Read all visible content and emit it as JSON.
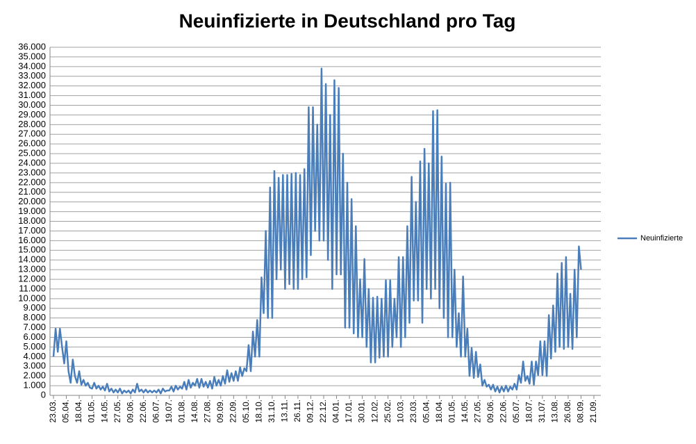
{
  "chart_data": {
    "type": "line",
    "title": "Neuinfizierte in Deutschland pro Tag",
    "categories": [
      "23.03.",
      null,
      null,
      null,
      null,
      null,
      "05.04.",
      null,
      null,
      null,
      null,
      null,
      "18.04.",
      null,
      null,
      null,
      null,
      null,
      "01.05.",
      null,
      null,
      null,
      null,
      null,
      "14.05.",
      null,
      null,
      null,
      null,
      null,
      "27.05.",
      null,
      null,
      null,
      null,
      null,
      "09.06.",
      null,
      null,
      null,
      null,
      null,
      "22.06.",
      null,
      null,
      null,
      null,
      null,
      "06.07.",
      null,
      null,
      null,
      null,
      null,
      "19.07.",
      null,
      null,
      null,
      null,
      null,
      "01.08.",
      null,
      null,
      null,
      null,
      null,
      "14.08.",
      null,
      null,
      null,
      null,
      null,
      "27.08.",
      null,
      null,
      null,
      null,
      null,
      "09.09.",
      null,
      null,
      null,
      null,
      null,
      "22.09.",
      null,
      null,
      null,
      null,
      null,
      "05.10.",
      null,
      null,
      null,
      null,
      null,
      "18.10.",
      null,
      null,
      null,
      null,
      null,
      "31.10.",
      null,
      null,
      null,
      null,
      null,
      "13.11.",
      null,
      null,
      null,
      null,
      null,
      "26.11.",
      null,
      null,
      null,
      null,
      null,
      "09.12.",
      null,
      null,
      null,
      null,
      null,
      "22.12.",
      null,
      null,
      null,
      null,
      null,
      "04.01.",
      null,
      null,
      null,
      null,
      null,
      "17.01.",
      null,
      null,
      null,
      null,
      null,
      "30.01.",
      null,
      null,
      null,
      null,
      null,
      "12.02.",
      null,
      null,
      null,
      null,
      null,
      "25.02.",
      null,
      null,
      null,
      null,
      null,
      "10.03.",
      null,
      null,
      null,
      null,
      null,
      "23.03.",
      null,
      null,
      null,
      null,
      null,
      "05.04.",
      null,
      null,
      null,
      null,
      null,
      "18.04.",
      null,
      null,
      null,
      null,
      null,
      "01.05.",
      null,
      null,
      null,
      null,
      null,
      "14.05.",
      null,
      null,
      null,
      null,
      null,
      "27.05.",
      null,
      null,
      null,
      null,
      null,
      "09.06.",
      null,
      null,
      null,
      null,
      null,
      "22.06.",
      null,
      null,
      null,
      null,
      null,
      "05.07.",
      null,
      null,
      null,
      null,
      null,
      "18.07.",
      null,
      null,
      null,
      null,
      null,
      "31.07.",
      null,
      null,
      null,
      null,
      null,
      "13.08.",
      null,
      null,
      null,
      null,
      null,
      "26.08.",
      null,
      null,
      null,
      null,
      null,
      "08.09.",
      null,
      null,
      null,
      null,
      null,
      "21.09."
    ],
    "series": [
      {
        "name": "Neuinfizierte",
        "color": "#4a7ebb",
        "values": [
          4000,
          6900,
          4500,
          6900,
          5000,
          3300,
          5600,
          2500,
          1300,
          3700,
          2000,
          1300,
          2500,
          1100,
          1600,
          1000,
          1300,
          800,
          700,
          1300,
          700,
          1000,
          600,
          900,
          500,
          1200,
          400,
          700,
          300,
          600,
          300,
          700,
          200,
          500,
          300,
          500,
          200,
          600,
          300,
          1200,
          400,
          600,
          300,
          600,
          300,
          500,
          300,
          500,
          300,
          600,
          200,
          700,
          400,
          500,
          500,
          900,
          400,
          1000,
          600,
          900,
          700,
          1400,
          600,
          1600,
          800,
          1300,
          1000,
          1700,
          800,
          1700,
          900,
          1400,
          800,
          1500,
          700,
          1900,
          1000,
          1600,
          1000,
          2000,
          1200,
          2600,
          1400,
          2300,
          1500,
          2500,
          1500,
          2900,
          2000,
          2800,
          2500,
          5200,
          2500,
          6600,
          4000,
          7800,
          4000,
          12200,
          8500,
          17000,
          8000,
          21500,
          8000,
          23200,
          12000,
          22500,
          13000,
          22800,
          11000,
          22800,
          11500,
          22900,
          11000,
          23000,
          11000,
          22800,
          12000,
          23400,
          12200,
          29800,
          14500,
          29800,
          17000,
          28000,
          16000,
          33800,
          16000,
          32200,
          14000,
          29000,
          11000,
          32600,
          12500,
          31800,
          12500,
          25000,
          7000,
          22000,
          7000,
          20300,
          6400,
          17500,
          6000,
          12000,
          6000,
          14100,
          5000,
          11000,
          3400,
          10100,
          3400,
          10200,
          3900,
          10000,
          4000,
          11900,
          4000,
          11900,
          5000,
          10000,
          6000,
          14300,
          5000,
          14300,
          6000,
          17500,
          7500,
          22600,
          9800,
          20000,
          9800,
          24200,
          7500,
          25500,
          11000,
          24000,
          10000,
          29400,
          11000,
          29500,
          9000,
          24700,
          8000,
          21900,
          6000,
          22000,
          6000,
          13000,
          5000,
          8500,
          4000,
          12300,
          4000,
          6900,
          2000,
          4900,
          1800,
          4500,
          1900,
          3200,
          1000,
          1600,
          900,
          1100,
          600,
          1100,
          400,
          900,
          300,
          900,
          400,
          1000,
          400,
          900,
          600,
          1200,
          600,
          2100,
          1300,
          3500,
          1500,
          2000,
          1200,
          3500,
          1100,
          3500,
          2100,
          5600,
          2100,
          5600,
          2000,
          8300,
          3800,
          9300,
          4500,
          12600,
          5000,
          13700,
          4800,
          14300,
          5000,
          10500,
          4800,
          13000,
          6000,
          15400,
          13000,
          null,
          null,
          null,
          null,
          null,
          null
        ]
      }
    ],
    "ylim": [
      0,
      36000
    ],
    "yticks": [
      0,
      {
        "value": 1000,
        "label": "1.000"
      },
      {
        "value": 2000,
        "label": "2.000"
      },
      {
        "value": 3000,
        "label": "3.000"
      },
      {
        "value": 4000,
        "label": "4.000"
      },
      {
        "value": 5000,
        "label": "5.000"
      },
      {
        "value": 6000,
        "label": "6.000"
      },
      {
        "value": 7000,
        "label": "7.000"
      },
      {
        "value": 8000,
        "label": "8.000"
      },
      {
        "value": 9000,
        "label": "9.000"
      },
      {
        "value": 10000,
        "label": "10.000"
      },
      {
        "value": 11000,
        "label": "11.000"
      },
      {
        "value": 12000,
        "label": "12.000"
      },
      {
        "value": 13000,
        "label": "13.000"
      },
      {
        "value": 14000,
        "label": "14.000"
      },
      {
        "value": 15000,
        "label": "15.000"
      },
      {
        "value": 16000,
        "label": "16.000"
      },
      {
        "value": 17000,
        "label": "17.000"
      },
      {
        "value": 18000,
        "label": "18.000"
      },
      {
        "value": 19000,
        "label": "19.000"
      },
      {
        "value": 20000,
        "label": "20.000"
      },
      {
        "value": 21000,
        "label": "21.000"
      },
      {
        "value": 22000,
        "label": "22.000"
      },
      {
        "value": 23000,
        "label": "23.000"
      },
      {
        "value": 24000,
        "label": "24.000"
      },
      {
        "value": 25000,
        "label": "25.000"
      },
      {
        "value": 26000,
        "label": "26.000"
      },
      {
        "value": 27000,
        "label": "27.000"
      },
      {
        "value": 28000,
        "label": "28.000"
      },
      {
        "value": 29000,
        "label": "29.000"
      },
      {
        "value": 30000,
        "label": "30.000"
      },
      {
        "value": 31000,
        "label": "31.000"
      },
      {
        "value": 32000,
        "label": "32.000"
      },
      {
        "value": 33000,
        "label": "33.000"
      },
      {
        "value": 34000,
        "label": "34.000"
      },
      {
        "value": 35000,
        "label": "35.000"
      },
      {
        "value": 36000,
        "label": "36.000"
      }
    ],
    "grid": true,
    "legend": "right"
  }
}
